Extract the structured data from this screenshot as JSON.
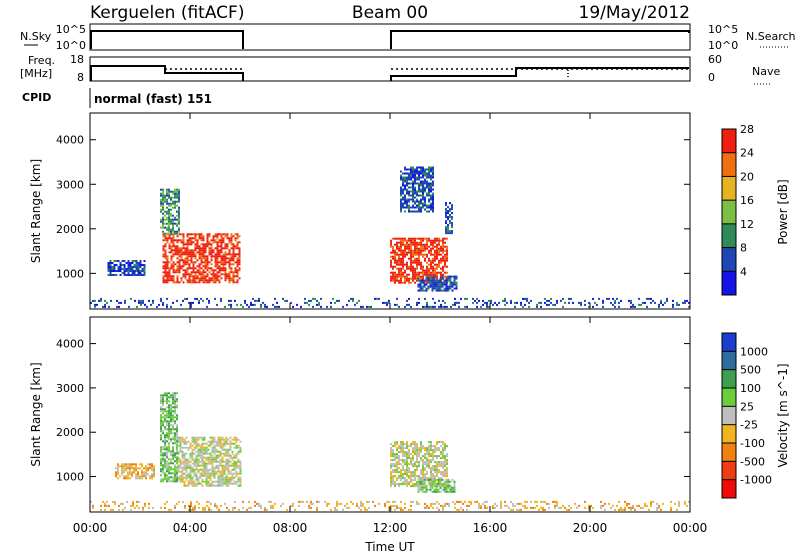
{
  "header": {
    "station": "Kerguelen (fitACF)",
    "beam": "Beam 00",
    "date": "19/May/2012"
  },
  "sky_panel": {
    "left_label": "N.Sky",
    "left_ticks": [
      "10^5",
      "10^0"
    ],
    "right_label": "N.Search",
    "right_ticks": [
      "10^5",
      "10^0"
    ]
  },
  "freq_panel": {
    "left_label_line1": "Freq.",
    "left_label_line2": "[MHz]",
    "left_ticks": [
      "18",
      "8"
    ],
    "right_label": "Nave",
    "right_ticks": [
      "60",
      "0"
    ]
  },
  "cpid": {
    "label": "CPID",
    "value": "normal (fast) 151"
  },
  "x_axis": {
    "label": "Time UT",
    "ticks": [
      "00:00",
      "04:00",
      "08:00",
      "12:00",
      "16:00",
      "20:00",
      "00:00"
    ]
  },
  "chart_data": [
    {
      "type": "heatmap",
      "name": "power",
      "ylabel": "Slant Range [km]",
      "yticks": [
        "1000",
        "2000",
        "3000",
        "4000"
      ],
      "ylim": [
        200,
        4600
      ],
      "xlim_hours": [
        0,
        24
      ],
      "colorbar_label": "Power [dB]",
      "colorbar_ticks": [
        "4",
        "8",
        "12",
        "16",
        "20",
        "24",
        "28"
      ],
      "colors": [
        "#1414e6",
        "#1e46b4",
        "#2e8b57",
        "#7bc043",
        "#e6b420",
        "#f07010",
        "#f02010"
      ],
      "regions": [
        {
          "t": [
            2.9,
            6.0
          ],
          "r": [
            800,
            1900
          ],
          "level": 6
        },
        {
          "t": [
            2.8,
            3.6
          ],
          "r": [
            1900,
            2900
          ],
          "level": 2
        },
        {
          "t": [
            0.7,
            2.2
          ],
          "r": [
            950,
            1300
          ],
          "level": 1
        },
        {
          "t": [
            12.0,
            14.3
          ],
          "r": [
            800,
            1800
          ],
          "level": 6
        },
        {
          "t": [
            12.4,
            13.7
          ],
          "r": [
            2400,
            3400
          ],
          "level": 1
        },
        {
          "t": [
            14.2,
            14.5
          ],
          "r": [
            1900,
            2600
          ],
          "level": 1
        },
        {
          "t": [
            13.1,
            14.7
          ],
          "r": [
            600,
            950
          ],
          "level": 1
        },
        {
          "t": [
            0,
            24
          ],
          "r": [
            250,
            450
          ],
          "level": 1
        }
      ]
    },
    {
      "type": "heatmap",
      "name": "velocity",
      "ylabel": "Slant Range [km]",
      "yticks": [
        "1000",
        "2000",
        "3000",
        "4000"
      ],
      "ylim": [
        200,
        4600
      ],
      "xlim_hours": [
        0,
        24
      ],
      "colorbar_label": "Velocity [m s^-1]",
      "colorbar_ticks": [
        "1000",
        "500",
        "100",
        "25",
        "-25",
        "-100",
        "-500",
        "-1000"
      ],
      "colors": [
        "#1a3ecf",
        "#2f6c9c",
        "#3ca050",
        "#6ccd3c",
        "#bebebe",
        "#f0b41e",
        "#f08214",
        "#f03c14",
        "#f00a0a"
      ],
      "regions": [
        {
          "t": [
            3.5,
            6.0
          ],
          "r": [
            800,
            1900
          ],
          "level": 4
        },
        {
          "t": [
            2.8,
            3.5
          ],
          "r": [
            900,
            2900
          ],
          "level": 3
        },
        {
          "t": [
            1.0,
            2.6
          ],
          "r": [
            950,
            1300
          ],
          "level": 5
        },
        {
          "t": [
            12.0,
            14.3
          ],
          "r": [
            800,
            1800
          ],
          "level": 4
        },
        {
          "t": [
            13.1,
            14.6
          ],
          "r": [
            650,
            950
          ],
          "level": 3
        },
        {
          "t": [
            0,
            24
          ],
          "r": [
            250,
            450
          ],
          "level": 5
        }
      ]
    }
  ]
}
